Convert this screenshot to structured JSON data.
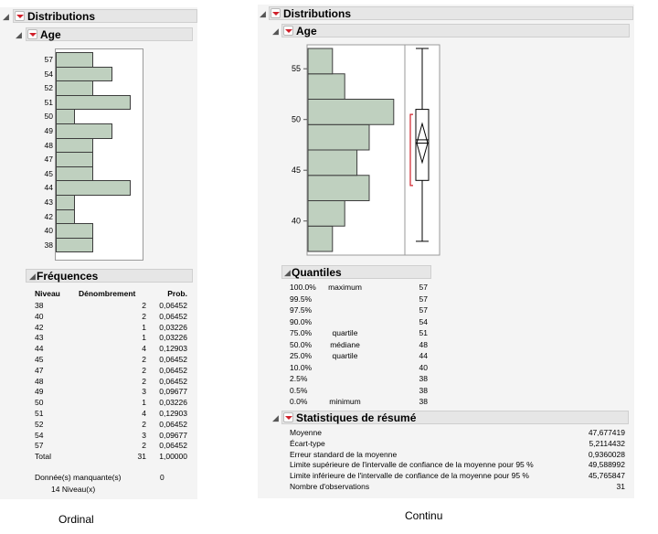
{
  "left": {
    "title": "Distributions",
    "section": "Age",
    "bars": [
      {
        "label": "57",
        "count": 2
      },
      {
        "label": "54",
        "count": 3
      },
      {
        "label": "52",
        "count": 2
      },
      {
        "label": "51",
        "count": 4
      },
      {
        "label": "50",
        "count": 1
      },
      {
        "label": "49",
        "count": 3
      },
      {
        "label": "48",
        "count": 2
      },
      {
        "label": "47",
        "count": 2
      },
      {
        "label": "45",
        "count": 2
      },
      {
        "label": "44",
        "count": 4
      },
      {
        "label": "43",
        "count": 1
      },
      {
        "label": "42",
        "count": 1
      },
      {
        "label": "40",
        "count": 2
      },
      {
        "label": "38",
        "count": 2
      }
    ],
    "freq": {
      "title": "Fréquences",
      "col_level": "Niveau",
      "col_count": "Dénombrement",
      "col_prob": "Prob.",
      "rows": [
        [
          "38",
          "2",
          "0,06452"
        ],
        [
          "40",
          "2",
          "0,06452"
        ],
        [
          "42",
          "1",
          "0,03226"
        ],
        [
          "43",
          "1",
          "0,03226"
        ],
        [
          "44",
          "4",
          "0,12903"
        ],
        [
          "45",
          "2",
          "0,06452"
        ],
        [
          "47",
          "2",
          "0,06452"
        ],
        [
          "48",
          "2",
          "0,06452"
        ],
        [
          "49",
          "3",
          "0,09677"
        ],
        [
          "50",
          "1",
          "0,03226"
        ],
        [
          "51",
          "4",
          "0,12903"
        ],
        [
          "52",
          "2",
          "0,06452"
        ],
        [
          "54",
          "3",
          "0,09677"
        ],
        [
          "57",
          "2",
          "0,06452"
        ],
        [
          "Total",
          "31",
          "1,00000"
        ]
      ],
      "missing_label": "Donnée(s) manquante(s)",
      "missing_value": "0",
      "levels_label": "14  Niveau(x)"
    },
    "caption": "Ordinal"
  },
  "right": {
    "title": "Distributions",
    "section": "Age",
    "axis_ticks": [
      "55",
      "50",
      "45",
      "40"
    ],
    "chart_data": {
      "type": "bar",
      "orientation": "horizontal",
      "bins": [
        {
          "from": 37,
          "to": 39.5,
          "count": 2
        },
        {
          "from": 39.5,
          "to": 42,
          "count": 3
        },
        {
          "from": 42,
          "to": 44.5,
          "count": 5
        },
        {
          "from": 44.5,
          "to": 47,
          "count": 4
        },
        {
          "from": 47,
          "to": 49.5,
          "count": 5
        },
        {
          "from": 49.5,
          "to": 52,
          "count": 7
        },
        {
          "from": 52,
          "to": 54.5,
          "count": 3
        },
        {
          "from": 54.5,
          "to": 57,
          "count": 2
        }
      ],
      "ylim": [
        37,
        57
      ],
      "box": {
        "min": 38,
        "q1": 44,
        "median": 48,
        "q3": 51,
        "max": 57,
        "mean": 47.677419,
        "ci_low": 45.765847,
        "ci_high": 49.588992,
        "shortest_half": [
          43.5,
          50.5
        ]
      }
    },
    "quantiles": {
      "title": "Quantiles",
      "rows": [
        [
          "100.0%",
          "maximum",
          "57"
        ],
        [
          "99.5%",
          "",
          "57"
        ],
        [
          "97.5%",
          "",
          "57"
        ],
        [
          "90.0%",
          "",
          "54"
        ],
        [
          "75.0%",
          "quartile",
          "51"
        ],
        [
          "50.0%",
          "médiane",
          "48"
        ],
        [
          "25.0%",
          "quartile",
          "44"
        ],
        [
          "10.0%",
          "",
          "40"
        ],
        [
          "2.5%",
          "",
          "38"
        ],
        [
          "0.5%",
          "",
          "38"
        ],
        [
          "0.0%",
          "minimum",
          "38"
        ]
      ]
    },
    "summary": {
      "title": "Statistiques de résumé",
      "rows": [
        [
          "Moyenne",
          "47,677419"
        ],
        [
          "Écart-type",
          "5,2114432"
        ],
        [
          "Erreur standard de la moyenne",
          "0,9360028"
        ],
        [
          "Limite supérieure de l'intervalle de confiance de la moyenne pour 95 %",
          "49,588992"
        ],
        [
          "Limite inférieure de l'intervalle de confiance de la moyenne pour 95 %",
          "45,765847"
        ],
        [
          "Nombre d'observations",
          "31"
        ]
      ]
    },
    "caption": "Continu"
  },
  "colors": {
    "bar_fill": "#bfd0bf",
    "bar_stroke": "#3d3d3d",
    "accent_red": "#d0202a",
    "header_bg": "#e6e6e6"
  }
}
